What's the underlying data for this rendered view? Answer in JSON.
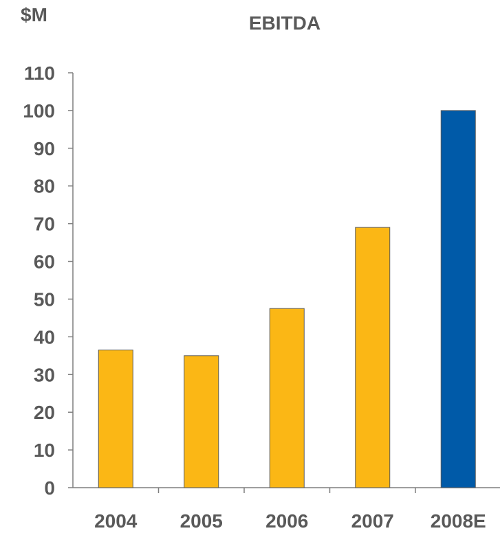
{
  "chart_data": {
    "type": "bar",
    "title": "EBITDA",
    "unit_label": "$M",
    "categories": [
      "2004",
      "2005",
      "2006",
      "2007",
      "2008E"
    ],
    "values": [
      36.5,
      35,
      47.5,
      69,
      100
    ],
    "bar_colors": [
      "#fbb715",
      "#fbb715",
      "#fbb715",
      "#fbb715",
      "#005aa8"
    ],
    "ylim": [
      0,
      110
    ],
    "yticks": [
      0,
      10,
      20,
      30,
      40,
      50,
      60,
      70,
      80,
      90,
      100,
      110
    ],
    "xlabel": "",
    "ylabel": "",
    "grid": false
  }
}
